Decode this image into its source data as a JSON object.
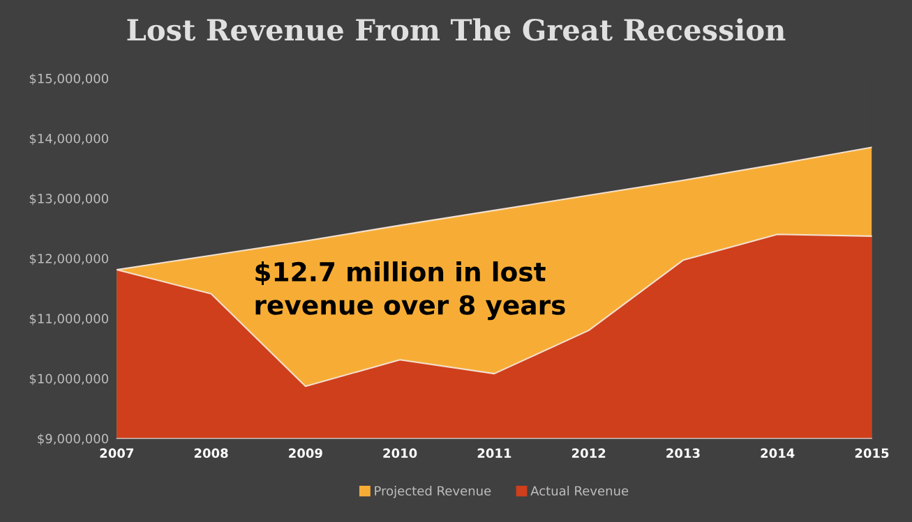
{
  "chart_data": {
    "type": "area",
    "title": "Lost Revenue From The Great Recession",
    "categories": [
      "2007",
      "2008",
      "2009",
      "2010",
      "2011",
      "2012",
      "2013",
      "2014",
      "2015"
    ],
    "series": [
      {
        "name": "Projected Revenue",
        "color": "#f7ad35",
        "values": [
          11810000,
          12050000,
          12290000,
          12550000,
          12800000,
          13050000,
          13300000,
          13570000,
          13850000
        ]
      },
      {
        "name": "Actual Revenue",
        "color": "#cf3f1c",
        "values": [
          11810000,
          11410000,
          9870000,
          10310000,
          10080000,
          10800000,
          11970000,
          12400000,
          12370000
        ]
      }
    ],
    "ylim": [
      9000000,
      15000000
    ],
    "yticks": [
      {
        "value": 9000000,
        "label": "$9,000,000"
      },
      {
        "value": 10000000,
        "label": "$10,000,000"
      },
      {
        "value": 11000000,
        "label": "$11,000,000"
      },
      {
        "value": 12000000,
        "label": "$12,000,000"
      },
      {
        "value": 13000000,
        "label": "$13,000,000"
      },
      {
        "value": 14000000,
        "label": "$14,000,000"
      },
      {
        "value": 15000000,
        "label": "$15,000,000"
      }
    ],
    "annotations": [
      "$12.7 million in lost\nrevenue over 8 years"
    ],
    "legend": "bottom",
    "grid": false
  }
}
